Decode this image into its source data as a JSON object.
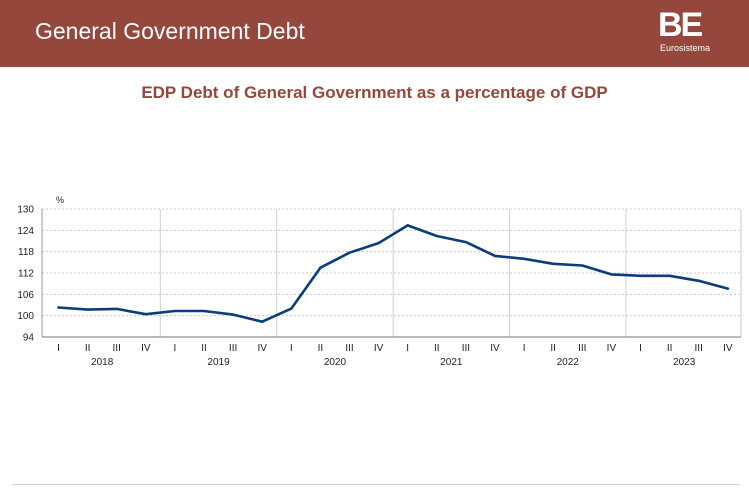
{
  "header": {
    "title": "General Government Debt",
    "logo_mark": "BE",
    "logo_sub": "Eurosistema"
  },
  "colors": {
    "header_bg": "#94473a",
    "title_color": "#94473a",
    "line_color": "#0b3d7a",
    "grid_color": "#c8c8c8"
  },
  "chart_data": {
    "type": "line",
    "title": "EDP Debt of General Government as a percentage of GDP",
    "ylabel": "%",
    "ylim": [
      94,
      130
    ],
    "yticks": [
      94,
      100,
      106,
      112,
      118,
      124,
      130
    ],
    "grid": "horizontal dashed",
    "quarters": [
      "I",
      "II",
      "III",
      "IV",
      "I",
      "II",
      "III",
      "IV",
      "I",
      "II",
      "III",
      "IV",
      "I",
      "II",
      "III",
      "IV",
      "I",
      "II",
      "III",
      "IV",
      "I",
      "II",
      "III",
      "IV"
    ],
    "years": [
      "2018",
      "2019",
      "2020",
      "2021",
      "2022",
      "2023"
    ],
    "series": [
      {
        "values": [
          102.3,
          101.7,
          101.9,
          100.4,
          101.3,
          101.3,
          100.3,
          98.3,
          102.0,
          113.5,
          117.7,
          120.4,
          125.4,
          122.4,
          120.7,
          116.8,
          116.0,
          114.6,
          114.1,
          111.6,
          111.2,
          111.2,
          109.8,
          107.6
        ]
      }
    ]
  }
}
